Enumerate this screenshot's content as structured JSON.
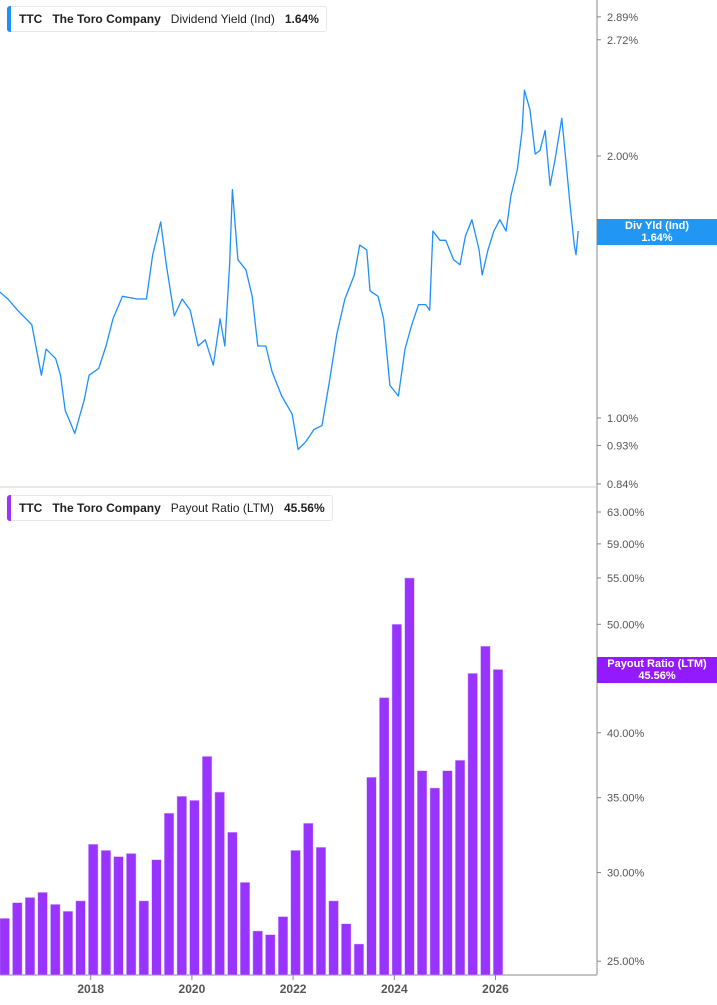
{
  "colors": {
    "yield_line": "#1e8fff",
    "payout_bars": "#9933ff",
    "axis": "#b0b0b0",
    "tick_text": "#555555"
  },
  "top_legend": {
    "ticker": "TTC",
    "company": "The Toro Company",
    "metric": "Dividend Yield (Ind)",
    "value": "1.64%"
  },
  "bottom_legend": {
    "ticker": "TTC",
    "company": "The Toro Company",
    "metric": "Payout Ratio (LTM)",
    "value": "45.56%"
  },
  "top_flag": {
    "label": "Div Yld (Ind)",
    "value": "1.64%"
  },
  "bottom_flag": {
    "label": "Payout Ratio (LTM)",
    "value": "45.56%"
  },
  "chart_data": [
    {
      "type": "line",
      "ylabel": "",
      "yscale": "log",
      "yticks": [
        2.89,
        2.72,
        2.0,
        1.0,
        0.93,
        0.84
      ],
      "ytick_labels": [
        "2.89%",
        "2.72%",
        "2.00%",
        "1.00%",
        "0.93%",
        "0.84%"
      ],
      "ylim": [
        0.84,
        2.95
      ],
      "grid": false,
      "series": [
        {
          "name": "Dividend Yield (Ind)",
          "points": [
            [
              "2016-02-15",
              1.4
            ],
            [
              "2016-04-15",
              1.37
            ],
            [
              "2016-06-15",
              1.33
            ],
            [
              "2016-09-15",
              1.28
            ],
            [
              "2016-11-15",
              1.12
            ],
            [
              "2016-12-15",
              1.2
            ],
            [
              "2017-02-15",
              1.17
            ],
            [
              "2017-03-15",
              1.12
            ],
            [
              "2017-04-15",
              1.02
            ],
            [
              "2017-05-15",
              0.99
            ],
            [
              "2017-06-15",
              0.96
            ],
            [
              "2017-08-15",
              1.05
            ],
            [
              "2017-09-15",
              1.12
            ],
            [
              "2017-11-15",
              1.14
            ],
            [
              "2018-01-01",
              1.21
            ],
            [
              "2018-02-15",
              1.3
            ],
            [
              "2018-04-15",
              1.38
            ],
            [
              "2018-07-15",
              1.37
            ],
            [
              "2018-09-15",
              1.37
            ],
            [
              "2018-10-25",
              1.54
            ],
            [
              "2018-12-15",
              1.68
            ],
            [
              "2019-01-20",
              1.5
            ],
            [
              "2019-03-10",
              1.31
            ],
            [
              "2019-04-30",
              1.37
            ],
            [
              "2019-06-20",
              1.33
            ],
            [
              "2019-08-10",
              1.21
            ],
            [
              "2019-09-25",
              1.23
            ],
            [
              "2019-11-15",
              1.15
            ],
            [
              "2019-12-28",
              1.3
            ],
            [
              "2020-01-28",
              1.21
            ],
            [
              "2020-02-28",
              1.5
            ],
            [
              "2020-03-15",
              1.83
            ],
            [
              "2020-04-20",
              1.52
            ],
            [
              "2020-06-10",
              1.48
            ],
            [
              "2020-07-20",
              1.38
            ],
            [
              "2020-08-25",
              1.21
            ],
            [
              "2020-10-15",
              1.21
            ],
            [
              "2020-11-25",
              1.13
            ],
            [
              "2021-01-25",
              1.06
            ],
            [
              "2021-04-01",
              1.01
            ],
            [
              "2021-05-08",
              0.92
            ],
            [
              "2021-06-28",
              0.94
            ],
            [
              "2021-08-18",
              0.97
            ],
            [
              "2021-10-08",
              0.98
            ],
            [
              "2021-11-28",
              1.11
            ],
            [
              "2022-01-12",
              1.25
            ],
            [
              "2022-03-02",
              1.37
            ],
            [
              "2022-05-01",
              1.46
            ],
            [
              "2022-06-05",
              1.58
            ],
            [
              "2022-07-20",
              1.56
            ],
            [
              "2022-08-10",
              1.4
            ],
            [
              "2022-09-30",
              1.38
            ],
            [
              "2022-11-05",
              1.3
            ],
            [
              "2022-12-15",
              1.09
            ],
            [
              "2023-02-08",
              1.06
            ],
            [
              "2023-03-20",
              1.2
            ],
            [
              "2023-05-02",
              1.28
            ],
            [
              "2023-06-15",
              1.35
            ],
            [
              "2023-07-30",
              1.35
            ],
            [
              "2023-08-25",
              1.33
            ],
            [
              "2023-09-15",
              1.64
            ],
            [
              "2023-10-30",
              1.6
            ],
            [
              "2023-12-05",
              1.6
            ],
            [
              "2024-01-25",
              1.52
            ],
            [
              "2024-03-05",
              1.5
            ],
            [
              "2024-04-10",
              1.62
            ],
            [
              "2024-05-20",
              1.69
            ],
            [
              "2024-07-05",
              1.56
            ],
            [
              "2024-07-25",
              1.46
            ],
            [
              "2024-09-01",
              1.56
            ],
            [
              "2024-10-08",
              1.64
            ],
            [
              "2024-11-15",
              1.69
            ],
            [
              "2024-12-25",
              1.64
            ],
            [
              "2025-01-25",
              1.8
            ],
            [
              "2025-03-05",
              1.93
            ],
            [
              "2025-04-05",
              2.14
            ],
            [
              "2025-04-20",
              2.38
            ],
            [
              "2025-05-25",
              2.26
            ],
            [
              "2025-06-28",
              2.01
            ],
            [
              "2025-07-28",
              2.03
            ],
            [
              "2025-08-30",
              2.14
            ],
            [
              "2025-10-01",
              1.85
            ],
            [
              "2025-11-02",
              1.98
            ],
            [
              "2025-12-15",
              2.21
            ],
            [
              "2026-01-10",
              1.98
            ],
            [
              "2026-02-06",
              1.76
            ],
            [
              "2026-03-03",
              1.58
            ],
            [
              "2026-03-14",
              1.54
            ],
            [
              "2026-03-28",
              1.64
            ]
          ]
        }
      ]
    },
    {
      "type": "bar",
      "ylabel": "",
      "yscale": "log",
      "yticks": [
        63,
        59,
        55,
        50,
        45,
        40,
        35,
        30,
        25
      ],
      "ytick_labels": [
        "63.00%",
        "59.00%",
        "55.00%",
        "50.00%",
        "45.00%",
        "40.00%",
        "35.00%",
        "30.00%",
        "25.00%"
      ],
      "ylim": [
        24.3,
        65
      ],
      "xtick_labels": [
        "2018",
        "2020",
        "2022",
        "2024",
        "2026"
      ],
      "grid": false,
      "series": [
        {
          "name": "Payout Ratio (LTM)",
          "categories": [
            "2016-04",
            "2016-07",
            "2016-10",
            "2017-01",
            "2017-04",
            "2017-07",
            "2017-10",
            "2018-01",
            "2018-04",
            "2018-07",
            "2018-10",
            "2019-01",
            "2019-04",
            "2019-07",
            "2019-10",
            "2020-01",
            "2020-04",
            "2020-07",
            "2020-10",
            "2021-01",
            "2021-04",
            "2021-07",
            "2021-10",
            "2022-01",
            "2022-04",
            "2022-07",
            "2022-10",
            "2023-01",
            "2023-04",
            "2023-07",
            "2023-10",
            "2024-01",
            "2024-04",
            "2024-07",
            "2024-10",
            "2025-01",
            "2025-04",
            "2025-07",
            "2025-10",
            "2026-01"
          ],
          "values": [
            27.3,
            28.2,
            28.5,
            28.8,
            28.1,
            27.7,
            28.3,
            31.8,
            31.4,
            31.0,
            31.2,
            28.3,
            30.8,
            33.9,
            35.1,
            34.8,
            38.1,
            35.4,
            32.6,
            29.4,
            26.6,
            26.4,
            27.4,
            31.4,
            33.2,
            31.6,
            28.3,
            27.0,
            25.9,
            36.5,
            43.0,
            50.0,
            55.0,
            37.0,
            35.7,
            37.0,
            37.8,
            45.2,
            47.8,
            45.56
          ]
        }
      ]
    }
  ]
}
